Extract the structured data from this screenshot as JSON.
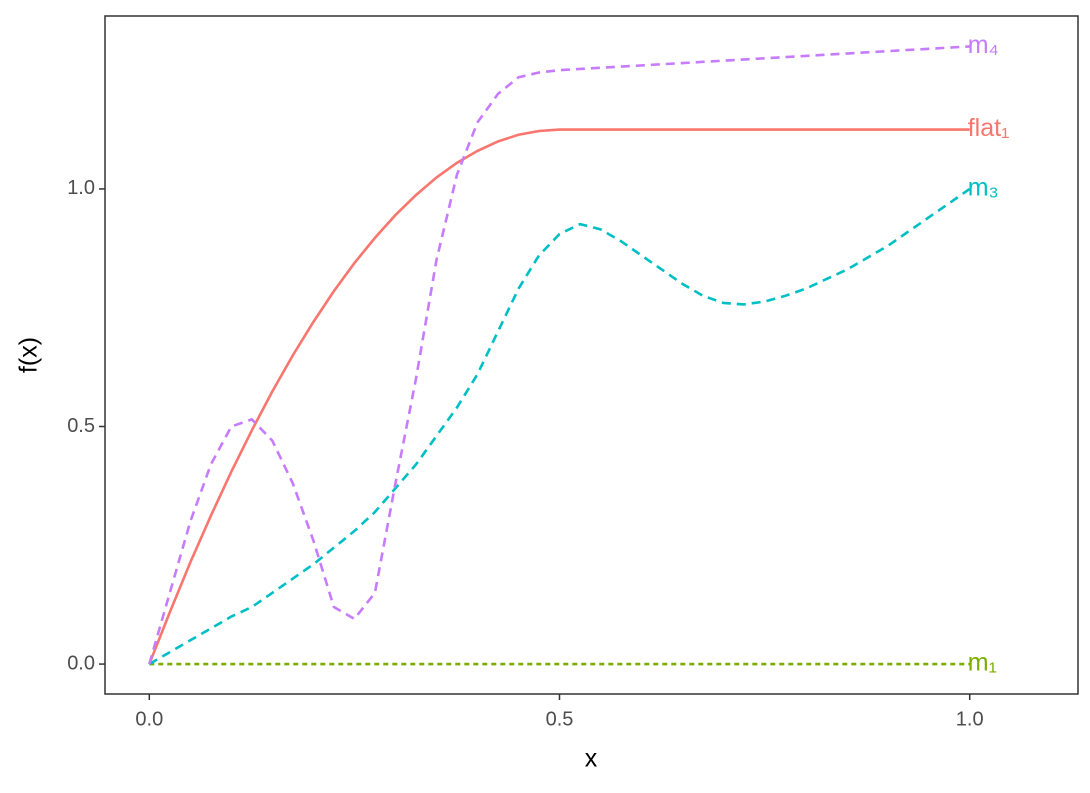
{
  "chart_data": {
    "type": "line",
    "xlabel": "x",
    "ylabel": "f(x)",
    "x": [
      0,
      0.025,
      0.05,
      0.075,
      0.1,
      0.125,
      0.15,
      0.175,
      0.2,
      0.225,
      0.25,
      0.275,
      0.3,
      0.325,
      0.35,
      0.375,
      0.4,
      0.425,
      0.45,
      0.475,
      0.5,
      0.525,
      0.55,
      0.575,
      0.6,
      0.625,
      0.65,
      0.675,
      0.7,
      0.725,
      0.75,
      0.775,
      0.8,
      0.825,
      0.85,
      0.875,
      0.9,
      0.925,
      0.95,
      0.975,
      1
    ],
    "series": [
      {
        "name": "flat₁",
        "color": "#F8766D",
        "linestyle": "solid",
        "values": [
          0,
          0.109,
          0.214,
          0.312,
          0.405,
          0.492,
          0.574,
          0.65,
          0.72,
          0.785,
          0.844,
          0.897,
          0.945,
          0.987,
          1.024,
          1.055,
          1.08,
          1.1,
          1.114,
          1.122,
          1.125,
          1.125,
          1.125,
          1.125,
          1.125,
          1.125,
          1.125,
          1.125,
          1.125,
          1.125,
          1.125,
          1.125,
          1.125,
          1.125,
          1.125,
          1.125,
          1.125,
          1.125,
          1.125,
          1.125,
          1.125
        ]
      },
      {
        "name": "m₁",
        "color": "#7CAE00",
        "linestyle": "dotted",
        "values": [
          0,
          0,
          0,
          0,
          0,
          0,
          0,
          0,
          0,
          0,
          0,
          0,
          0,
          0,
          0,
          0,
          0,
          0,
          0,
          0,
          0,
          0,
          0,
          0,
          0,
          0,
          0,
          0,
          0,
          0,
          0,
          0,
          0,
          0,
          0,
          0,
          0,
          0,
          0,
          0,
          0
        ]
      },
      {
        "name": "m₃",
        "color": "#00BFC4",
        "linestyle": "dashed",
        "values": [
          0,
          0.025,
          0.05,
          0.075,
          0.1,
          0.12,
          0.15,
          0.18,
          0.21,
          0.245,
          0.28,
          0.32,
          0.37,
          0.42,
          0.48,
          0.54,
          0.61,
          0.7,
          0.79,
          0.86,
          0.905,
          0.926,
          0.915,
          0.89,
          0.86,
          0.83,
          0.8,
          0.775,
          0.76,
          0.757,
          0.763,
          0.775,
          0.79,
          0.81,
          0.83,
          0.855,
          0.88,
          0.91,
          0.94,
          0.97,
          1.0
        ]
      },
      {
        "name": "m₄",
        "color": "#C77CFF",
        "linestyle": "dashed",
        "values": [
          0,
          0.15,
          0.3,
          0.42,
          0.5,
          0.515,
          0.47,
          0.38,
          0.26,
          0.12,
          0.095,
          0.15,
          0.38,
          0.6,
          0.85,
          1.03,
          1.14,
          1.2,
          1.235,
          1.245,
          1.25,
          1.2525,
          1.255,
          1.2575,
          1.26,
          1.2625,
          1.265,
          1.2675,
          1.27,
          1.2725,
          1.275,
          1.2775,
          1.28,
          1.2825,
          1.285,
          1.2875,
          1.29,
          1.2925,
          1.295,
          1.2975,
          1.3
        ]
      }
    ],
    "xlim": [
      -0.054,
      1.132
    ],
    "ylim": [
      -0.063,
      1.364
    ],
    "xticks": [
      {
        "value": 0,
        "label": "0.0"
      },
      {
        "value": 0.5,
        "label": "0.5"
      },
      {
        "value": 1,
        "label": "1.0"
      }
    ],
    "yticks": [
      {
        "value": 0,
        "label": "0.0"
      },
      {
        "value": 0.5,
        "label": "0.5"
      },
      {
        "value": 1,
        "label": "1.0"
      }
    ],
    "grid": false
  }
}
